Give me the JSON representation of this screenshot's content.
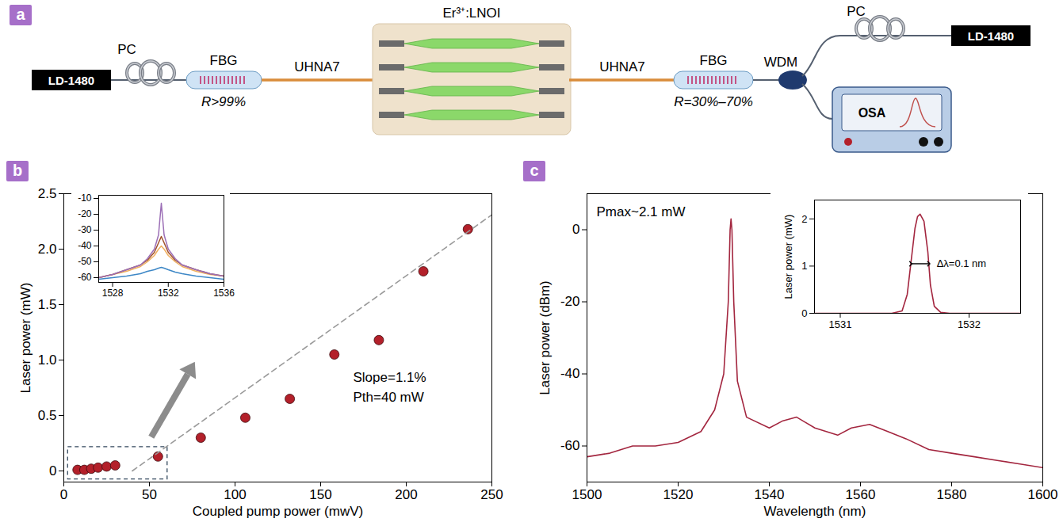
{
  "diagram": {
    "panel": "a",
    "pump_left": {
      "source": "LD-1480",
      "controller": "PC"
    },
    "fbg_left": {
      "label": "FBG",
      "reflectivity": "R>99%"
    },
    "fiber_left": "UHNA7",
    "chip": "Er³⁺:LNOI",
    "fiber_right": "UHNA7",
    "fbg_right": {
      "label": "FBG",
      "reflectivity": "R=30%–70%"
    },
    "coupler": "WDM",
    "pump_right": {
      "source": "LD-1480",
      "controller": "PC"
    },
    "analyzer": "OSA"
  },
  "chart_data": [
    {
      "panel": "b",
      "type": "scatter",
      "xlabel": "Coupled pump power (mwV)",
      "ylabel": "Laser power (mW)",
      "xlim": [
        0,
        250
      ],
      "ylim": [
        -0.1,
        2.5
      ],
      "xticks": [
        0,
        50,
        100,
        150,
        200,
        250
      ],
      "yticks": [
        0,
        0.5,
        {
          "value": 1,
          "label": "1.0"
        },
        1.5,
        {
          "value": 2,
          "label": "2.0"
        },
        2.5
      ],
      "annotations": [
        "Slope=1.1%",
        "Pth=40 mW"
      ],
      "series": [
        {
          "type": "scatter",
          "marker": "circle",
          "color": "#b3202a",
          "x": [
            8,
            12,
            16,
            20,
            25,
            30,
            55,
            80,
            106,
            132,
            158,
            184,
            210,
            236
          ],
          "values": [
            0.01,
            0.01,
            0.02,
            0.03,
            0.04,
            0.05,
            0.13,
            0.3,
            0.48,
            0.65,
            1.05,
            1.18,
            1.8,
            2.18
          ]
        },
        {
          "type": "line",
          "line_style": "dashed",
          "color": "#9a9a9a",
          "x": [
            40,
            250
          ],
          "values": [
            0,
            2.31
          ]
        }
      ],
      "inset": {
        "type": "line",
        "xlim": [
          1527,
          1536
        ],
        "ylim": [
          -63,
          -8
        ],
        "xticks": [
          1528,
          1532,
          1536
        ],
        "yticks": [
          -60,
          -50,
          -40,
          -30,
          -20,
          -10
        ],
        "x": [
          1527,
          1528,
          1529,
          1530,
          1530.5,
          1531,
          1531.3,
          1531.5,
          1531.7,
          1532,
          1532.5,
          1533,
          1534,
          1535,
          1536
        ],
        "series": [
          {
            "color": "#3d87c6",
            "values": [
              -61,
              -60,
              -59,
              -57.5,
              -56,
              -55,
              -54,
              -53.5,
              -54,
              -55,
              -56.5,
              -57.5,
              -59,
              -60,
              -61
            ]
          },
          {
            "color": "#f0b060",
            "values": [
              -60,
              -58,
              -56,
              -53,
              -50,
              -46,
              -42,
              -40,
              -42,
              -46,
              -50,
              -53,
              -56,
              -58,
              -59
            ]
          },
          {
            "color": "#a0522d",
            "values": [
              -60,
              -58,
              -55,
              -52,
              -49,
              -44,
              -38,
              -34,
              -38,
              -44,
              -49,
              -52,
              -55,
              -57.5,
              -59
            ]
          },
          {
            "color": "#9c6fb6",
            "values": [
              -60,
              -58,
              -55,
              -52,
              -48,
              -42,
              -33,
              -13,
              -33,
              -42,
              -48,
              -52,
              -55,
              -57.5,
              -59
            ]
          }
        ]
      }
    },
    {
      "panel": "c",
      "type": "line",
      "xlabel": "Wavelength (nm)",
      "ylabel": "Laser power (dBm)",
      "xlim": [
        1500,
        1600
      ],
      "ylim": [
        -70,
        10
      ],
      "xticks": [
        1500,
        1520,
        1540,
        1560,
        1580,
        1600
      ],
      "yticks": [
        -60,
        -40,
        -20,
        0
      ],
      "annotations": [
        "Pmax~2.1 mW"
      ],
      "color": "#a3263f",
      "x": [
        1500,
        1505,
        1510,
        1515,
        1520,
        1525,
        1528,
        1530,
        1531,
        1531.4,
        1531.6,
        1531.8,
        1532.2,
        1533,
        1535,
        1540,
        1543,
        1546,
        1550,
        1555,
        1558,
        1562,
        1566,
        1570,
        1575,
        1580,
        1585,
        1590,
        1595,
        1600
      ],
      "values": [
        -63,
        -62,
        -60,
        -60,
        -59,
        -56,
        -50,
        -40,
        -20,
        0,
        3,
        0,
        -20,
        -42,
        -52,
        -55,
        -53,
        -52,
        -55,
        -57,
        -55,
        -54,
        -56,
        -58,
        -61,
        -62,
        -63,
        -64,
        -65,
        -66
      ],
      "inset": {
        "type": "line",
        "ylabel": "Laser power (mW)",
        "xlim": [
          1530.8,
          1532.4
        ],
        "ylim": [
          0,
          2.4
        ],
        "xticks": [
          1531,
          1532
        ],
        "yticks": [
          0,
          1,
          2
        ],
        "color": "#a3263f",
        "annotations": [
          "Δλ=0.1 nm"
        ],
        "x": [
          1530.8,
          1531.4,
          1531.48,
          1531.52,
          1531.55,
          1531.58,
          1531.6,
          1531.62,
          1531.65,
          1531.68,
          1531.7,
          1531.73,
          1531.78,
          1531.85,
          1532.4
        ],
        "values": [
          0,
          0,
          0.05,
          0.4,
          1.1,
          1.8,
          2.05,
          2.1,
          1.95,
          1.3,
          0.6,
          0.15,
          0.02,
          0,
          0
        ]
      }
    }
  ]
}
